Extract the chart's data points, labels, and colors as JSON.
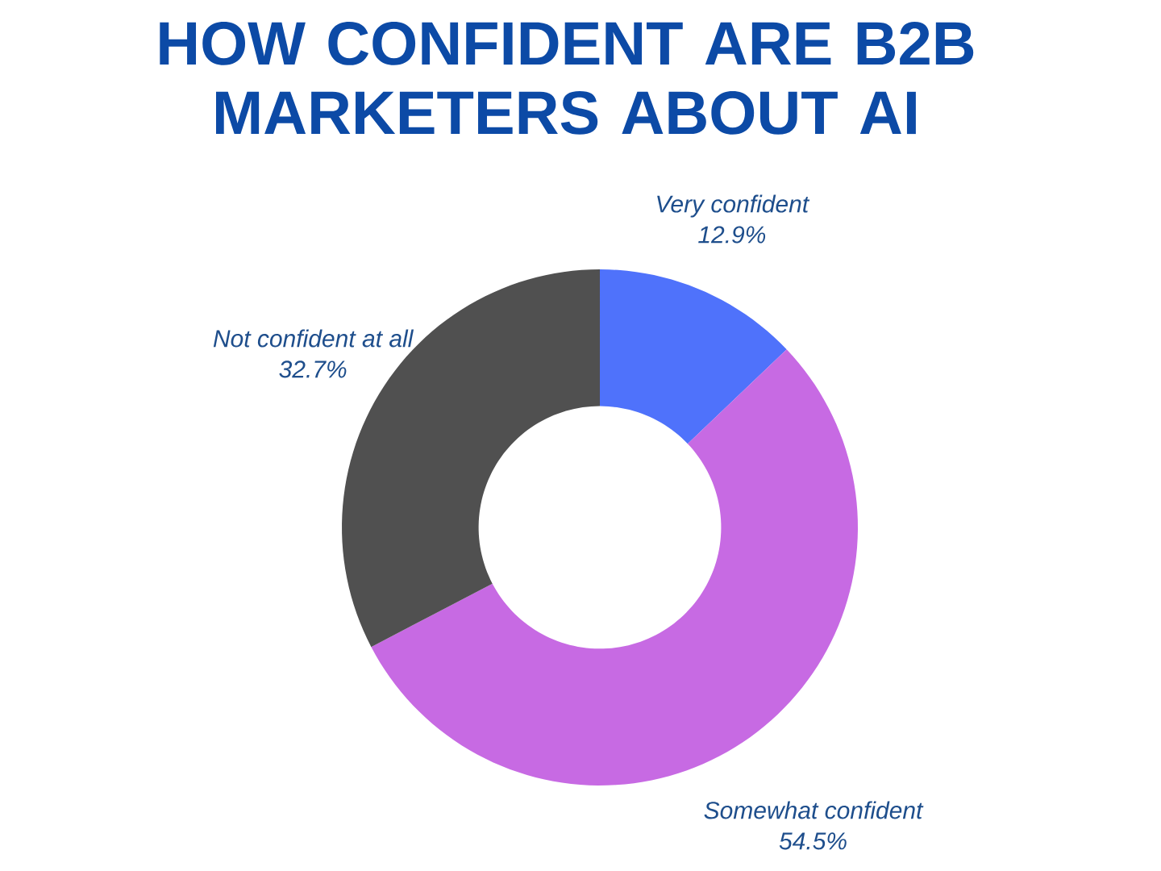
{
  "chart_data": {
    "type": "donut",
    "title": "HOW CONFIDENT ARE B2B MARKETERS ABOUT AI",
    "categories": [
      "Very confident",
      "Somewhat confident",
      "Not confident at all"
    ],
    "values": [
      12.9,
      54.5,
      32.7
    ],
    "value_labels": [
      "12.9%",
      "54.5%",
      "32.7%"
    ],
    "colors": [
      "#4f72fb",
      "#c76ae3",
      "#505050"
    ]
  }
}
